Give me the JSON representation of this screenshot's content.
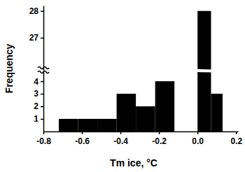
{
  "chart_data": {
    "type": "histogram",
    "x_label": "Tm ice, °C",
    "y_label": "Frequency",
    "bins": [
      -0.72,
      -0.62,
      -0.52,
      -0.42,
      -0.32,
      -0.22,
      -0.12,
      0.0,
      0.07,
      0.13
    ],
    "values": [
      1,
      1,
      1,
      3,
      2,
      4,
      0,
      28,
      3
    ],
    "color": "#000000",
    "xlim": [
      -0.8,
      0.21
    ],
    "xticks": [
      -0.8,
      -0.6,
      -0.4,
      -0.2,
      {
        "value": 0,
        "label": "0.0"
      },
      0.2
    ],
    "ylim": [
      [
        0,
        4.9
      ],
      [
        25.8,
        28.2
      ]
    ],
    "yticks": [
      1,
      2,
      3,
      4,
      27,
      28
    ],
    "grid": false
  }
}
